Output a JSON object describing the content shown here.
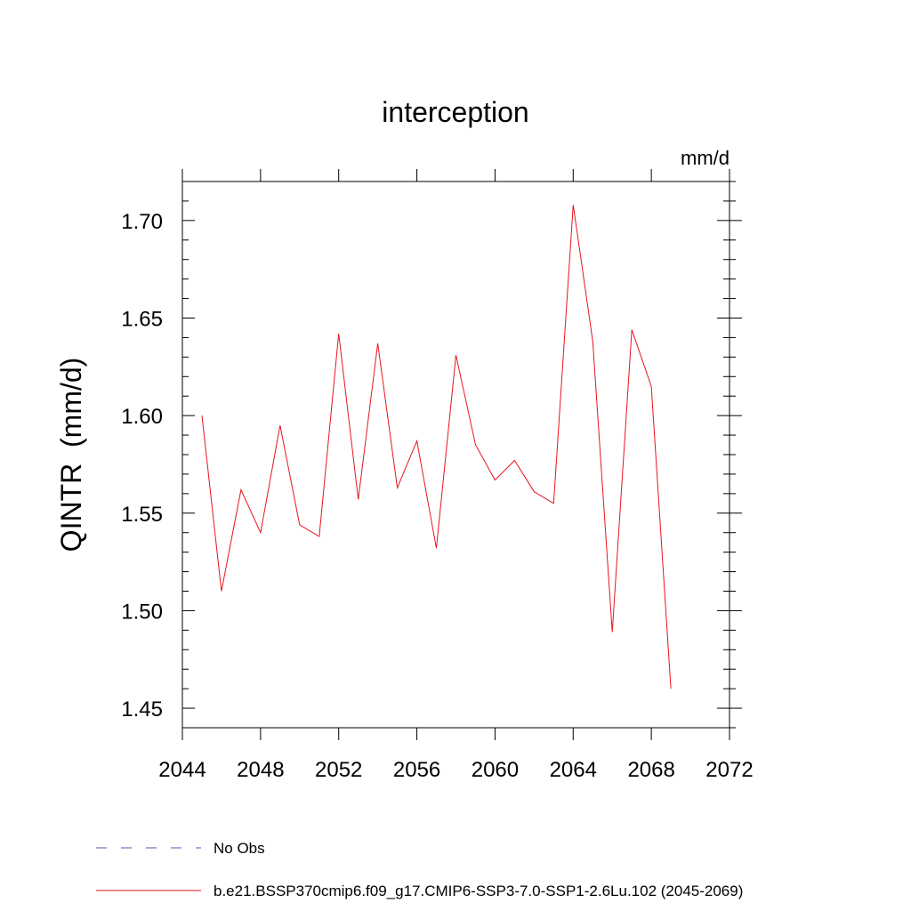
{
  "chart_data": {
    "type": "line",
    "title": "interception",
    "units_label": "mm/d",
    "ylabel": "QINTR  (mm/d)",
    "xlabel": "",
    "xlim": [
      2044,
      2072
    ],
    "ylim": [
      1.44,
      1.72
    ],
    "x_ticks": [
      2044,
      2048,
      2052,
      2056,
      2060,
      2064,
      2068,
      2072
    ],
    "x_tick_labels": [
      "2044",
      "2048",
      "2052",
      "2056",
      "2060",
      "2064",
      "2068",
      "2072"
    ],
    "y_ticks": [
      1.45,
      1.5,
      1.55,
      1.6,
      1.65,
      1.7
    ],
    "y_tick_labels": [
      "1.45",
      "1.50",
      "1.55",
      "1.60",
      "1.65",
      "1.70"
    ],
    "grid": false,
    "legend_placement": "bottom-left",
    "series": [
      {
        "name": "b.e21.BSSP370cmip6.f09_g17.CMIP6-SSP3-7.0-SSP1-2.6Lu.102 (2045-2069)",
        "color": "#e8141c",
        "line_style": "solid",
        "x": [
          2045,
          2046,
          2047,
          2048,
          2049,
          2050,
          2051,
          2052,
          2053,
          2054,
          2055,
          2056,
          2057,
          2058,
          2059,
          2060,
          2061,
          2062,
          2063,
          2064,
          2065,
          2066,
          2067,
          2068,
          2069
        ],
        "values": [
          1.6,
          1.51,
          1.562,
          1.54,
          1.595,
          1.544,
          1.538,
          1.642,
          1.557,
          1.637,
          1.563,
          1.587,
          1.532,
          1.631,
          1.585,
          1.567,
          1.577,
          1.561,
          1.555,
          1.708,
          1.638,
          1.489,
          1.644,
          1.615,
          1.46
        ]
      }
    ],
    "legend": [
      {
        "label": "No Obs",
        "color": "#5a4fb0",
        "line_style": "dashed"
      },
      {
        "label": "b.e21.BSSP370cmip6.f09_g17.CMIP6-SSP3-7.0-SSP1-2.6Lu.102 (2045-2069)",
        "color": "#e8141c",
        "line_style": "solid"
      }
    ]
  }
}
